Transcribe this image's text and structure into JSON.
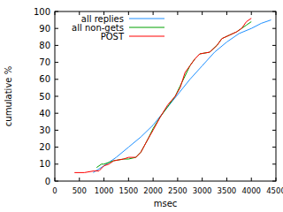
{
  "chart_data": {
    "type": "line",
    "x_label": "msec",
    "y_label": "cumulative %",
    "xlim": [
      0,
      4500
    ],
    "xticks": [
      0,
      500,
      1000,
      1500,
      2000,
      2500,
      3000,
      3500,
      4000,
      4500
    ],
    "ylim": [
      0,
      100
    ],
    "yticks": [
      0,
      10,
      20,
      30,
      40,
      50,
      60,
      70,
      80,
      90,
      100
    ],
    "grid": false,
    "legend": "top",
    "series": [
      {
        "name": "all replies",
        "color": "#1e90ff",
        "x": [
          780,
          1000,
          1250,
          1500,
          1750,
          2000,
          2250,
          2500,
          2750,
          3000,
          3250,
          3500,
          3750,
          4000,
          4200,
          4400
        ],
        "values": [
          5,
          9,
          14,
          20,
          26,
          33,
          42,
          51,
          60,
          68,
          76,
          82,
          87,
          90,
          93,
          95
        ]
      },
      {
        "name": "all non-gets",
        "color": "#00a000",
        "x": [
          850,
          950,
          1000,
          1100,
          1200,
          1400,
          1500,
          1650,
          1750,
          1900,
          2000,
          2150,
          2300,
          2450,
          2550,
          2650,
          2750,
          2850,
          2950,
          3150,
          3300,
          3400,
          3550,
          3700,
          3800,
          3900,
          4000
        ],
        "values": [
          8,
          10,
          10,
          11,
          12,
          13,
          13,
          14,
          17,
          25,
          31,
          38,
          44,
          50,
          56,
          62,
          68,
          72,
          75,
          76,
          80,
          84,
          86,
          88,
          90,
          92,
          94
        ]
      },
      {
        "name": "POST",
        "color": "#ff0000",
        "x": [
          400,
          600,
          800,
          900,
          1000,
          1100,
          1200,
          1400,
          1500,
          1650,
          1750,
          1900,
          2000,
          2150,
          2300,
          2450,
          2550,
          2650,
          2750,
          2850,
          2950,
          3150,
          3300,
          3400,
          3550,
          3700,
          3800,
          3900,
          4000
        ],
        "values": [
          5,
          5,
          6,
          6,
          9,
          10,
          12,
          13,
          14,
          14,
          17,
          25,
          30,
          38,
          45,
          50,
          55,
          64,
          68,
          72,
          75,
          76,
          80,
          84,
          86,
          88,
          90,
          94,
          96
        ]
      }
    ]
  }
}
